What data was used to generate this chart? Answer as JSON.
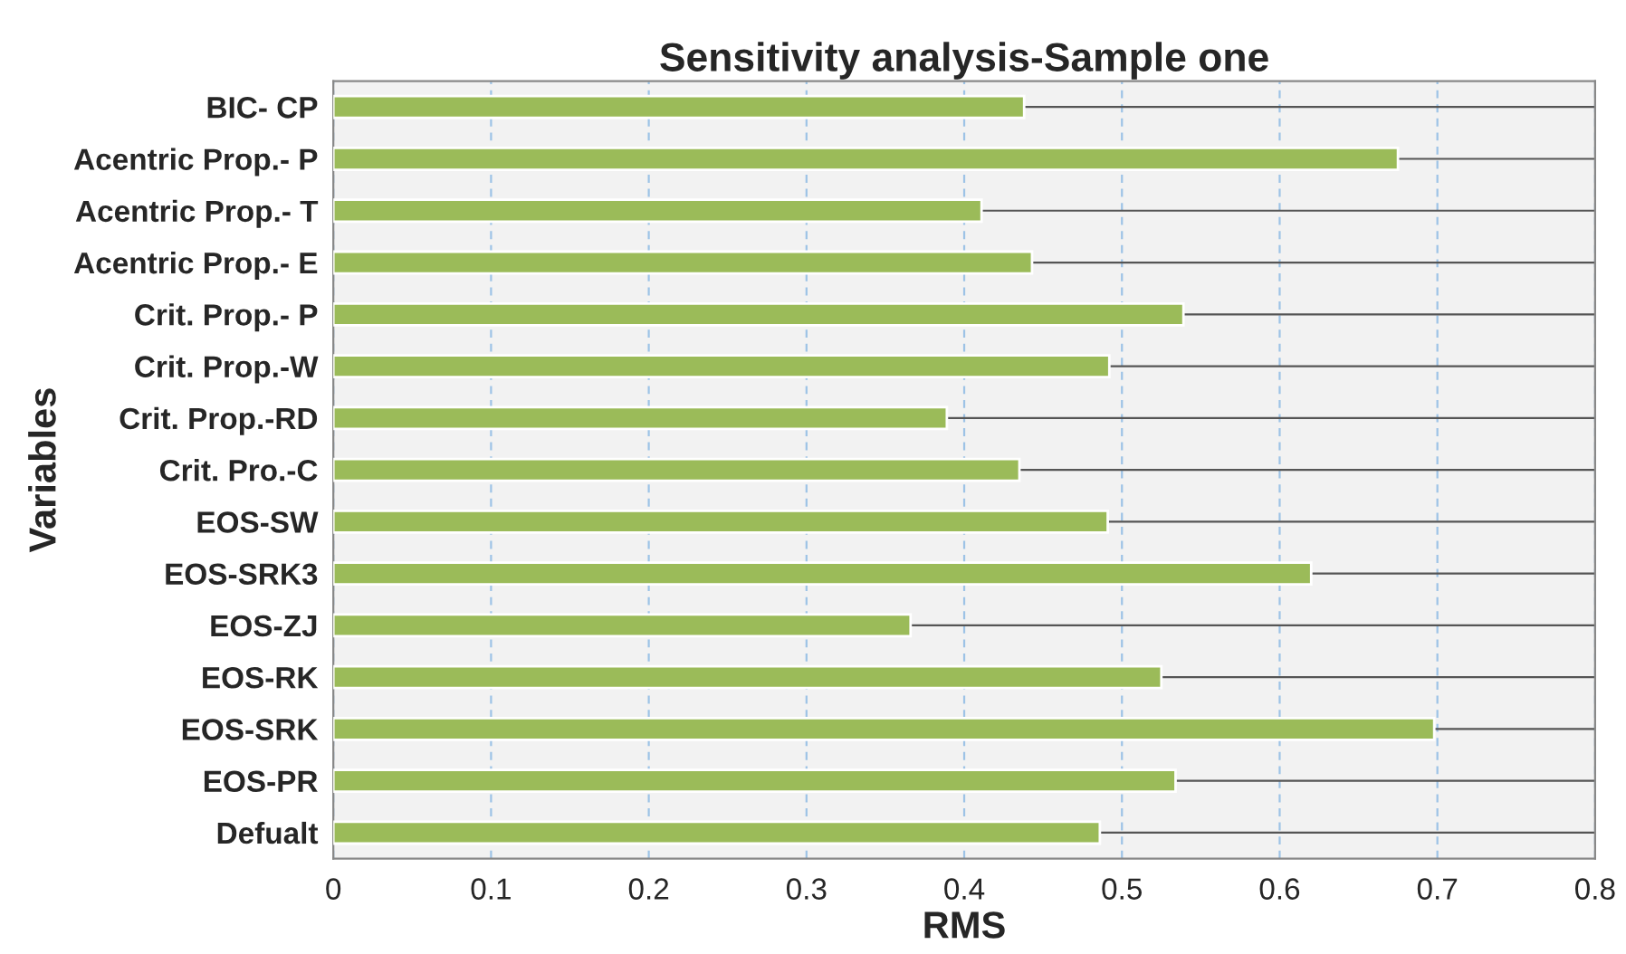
{
  "chart_data": {
    "type": "bar",
    "orientation": "horizontal",
    "title": "Sensitivity analysis-Sample one",
    "xlabel": "RMS",
    "ylabel": "Variables",
    "categories": [
      "BIC- CP",
      "Acentric Prop.- P",
      "Acentric Prop.- T",
      "Acentric Prop.- E",
      "Crit. Prop.- P",
      "Crit. Prop.-W",
      "Crit. Prop.-RD",
      "Crit. Pro.-C",
      "EOS-SW",
      "EOS-SRK3",
      "EOS-ZJ",
      "EOS-RK",
      "EOS-SRK",
      "EOS-PR",
      "Defualt"
    ],
    "values": [
      0.438,
      0.675,
      0.411,
      0.443,
      0.539,
      0.492,
      0.389,
      0.435,
      0.491,
      0.62,
      0.366,
      0.525,
      0.698,
      0.534,
      0.486
    ],
    "color": "#9bbb59",
    "xlim": [
      0,
      0.8
    ],
    "xticks": [
      0,
      0.1,
      0.2,
      0.3,
      0.4,
      0.5,
      0.6,
      0.7,
      0.8
    ],
    "grid": true,
    "legend": false
  }
}
